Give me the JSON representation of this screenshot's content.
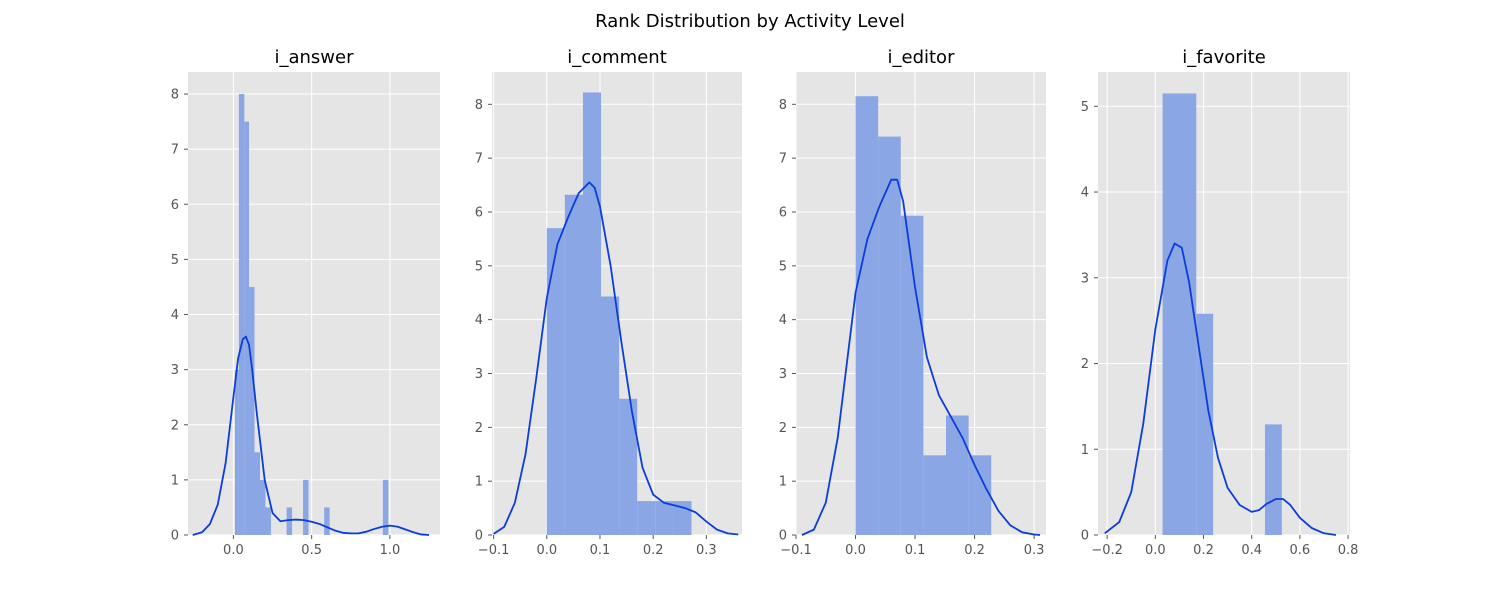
{
  "figure": {
    "title": "Rank Distribution by Activity Level"
  },
  "colors": {
    "panel_bg": "#e5e5e5",
    "grid": "#ffffff",
    "bar": "#8aa6e5",
    "kde": "#0b3ddc",
    "tick_text": "#555555"
  },
  "chart_data": [
    {
      "type": "histogram",
      "title": "i_answer",
      "xlabel": "",
      "ylabel": "",
      "xlim": [
        -0.29,
        1.32
      ],
      "ylim": [
        0,
        8.4
      ],
      "xticks": [
        0.0,
        0.5,
        1.0
      ],
      "xtick_labels": [
        "0.0",
        "0.5",
        "1.0"
      ],
      "yticks": [
        0,
        1,
        2,
        3,
        4,
        5,
        6,
        7,
        8
      ],
      "ytick_labels": [
        "0",
        "1",
        "2",
        "3",
        "4",
        "5",
        "6",
        "7",
        "8"
      ],
      "bins": [
        {
          "x0": 0.01,
          "x1": 0.035,
          "height": 3.0
        },
        {
          "x0": 0.035,
          "x1": 0.07,
          "height": 8.0
        },
        {
          "x0": 0.07,
          "x1": 0.1,
          "height": 7.5
        },
        {
          "x0": 0.1,
          "x1": 0.135,
          "height": 4.5
        },
        {
          "x0": 0.135,
          "x1": 0.17,
          "height": 1.5
        },
        {
          "x0": 0.17,
          "x1": 0.205,
          "height": 1.0
        },
        {
          "x0": 0.205,
          "x1": 0.24,
          "height": 0.5
        },
        {
          "x0": 0.34,
          "x1": 0.375,
          "height": 0.5
        },
        {
          "x0": 0.445,
          "x1": 0.48,
          "height": 1.0
        },
        {
          "x0": 0.58,
          "x1": 0.615,
          "height": 0.5
        },
        {
          "x0": 0.955,
          "x1": 0.99,
          "height": 1.0
        }
      ],
      "kde": {
        "x": [
          -0.26,
          -0.2,
          -0.15,
          -0.1,
          -0.05,
          0.0,
          0.03,
          0.06,
          0.08,
          0.1,
          0.12,
          0.15,
          0.2,
          0.25,
          0.3,
          0.35,
          0.4,
          0.45,
          0.5,
          0.55,
          0.6,
          0.65,
          0.7,
          0.75,
          0.8,
          0.85,
          0.9,
          0.95,
          1.0,
          1.05,
          1.1,
          1.15,
          1.2,
          1.25
        ],
        "y": [
          0.0,
          0.05,
          0.2,
          0.55,
          1.3,
          2.5,
          3.2,
          3.55,
          3.6,
          3.45,
          3.0,
          2.2,
          1.0,
          0.4,
          0.25,
          0.27,
          0.28,
          0.27,
          0.24,
          0.2,
          0.14,
          0.08,
          0.04,
          0.03,
          0.03,
          0.06,
          0.11,
          0.15,
          0.17,
          0.15,
          0.1,
          0.05,
          0.01,
          0.0
        ]
      }
    },
    {
      "type": "histogram",
      "title": "i_comment",
      "xlabel": "",
      "ylabel": "",
      "xlim": [
        -0.103,
        0.367
      ],
      "ylim": [
        0,
        8.6
      ],
      "xticks": [
        -0.1,
        0.0,
        0.1,
        0.2,
        0.3
      ],
      "xtick_labels": [
        "−0.1",
        "0.0",
        "0.1",
        "0.2",
        "0.3"
      ],
      "yticks": [
        0,
        1,
        2,
        3,
        4,
        5,
        6,
        7,
        8
      ],
      "ytick_labels": [
        "0",
        "1",
        "2",
        "3",
        "4",
        "5",
        "6",
        "7",
        "8"
      ],
      "bins": [
        {
          "x0": 0.0,
          "x1": 0.034,
          "height": 5.7
        },
        {
          "x0": 0.034,
          "x1": 0.068,
          "height": 6.32
        },
        {
          "x0": 0.068,
          "x1": 0.102,
          "height": 8.22
        },
        {
          "x0": 0.102,
          "x1": 0.136,
          "height": 4.43
        },
        {
          "x0": 0.136,
          "x1": 0.17,
          "height": 2.53
        },
        {
          "x0": 0.17,
          "x1": 0.204,
          "height": 0.63
        },
        {
          "x0": 0.204,
          "x1": 0.238,
          "height": 0.63
        },
        {
          "x0": 0.238,
          "x1": 0.272,
          "height": 0.63
        }
      ],
      "kde": {
        "x": [
          -0.1,
          -0.08,
          -0.06,
          -0.04,
          -0.02,
          0.0,
          0.02,
          0.04,
          0.06,
          0.08,
          0.09,
          0.1,
          0.12,
          0.14,
          0.16,
          0.18,
          0.2,
          0.22,
          0.24,
          0.26,
          0.28,
          0.3,
          0.32,
          0.34,
          0.36
        ],
        "y": [
          0.02,
          0.15,
          0.6,
          1.5,
          2.9,
          4.4,
          5.4,
          5.9,
          6.35,
          6.55,
          6.45,
          6.1,
          5.0,
          3.6,
          2.3,
          1.25,
          0.75,
          0.6,
          0.55,
          0.5,
          0.42,
          0.25,
          0.1,
          0.03,
          0.01
        ]
      }
    },
    {
      "type": "histogram",
      "title": "i_editor",
      "xlabel": "",
      "ylabel": "",
      "xlim": [
        -0.1,
        0.32
      ],
      "ylim": [
        0,
        8.6
      ],
      "xticks": [
        -0.1,
        0.0,
        0.1,
        0.2,
        0.3
      ],
      "xtick_labels": [
        "−0.1",
        "0.0",
        "0.1",
        "0.2",
        "0.3"
      ],
      "yticks": [
        0,
        1,
        2,
        3,
        4,
        5,
        6,
        7,
        8
      ],
      "ytick_labels": [
        "0",
        "1",
        "2",
        "3",
        "4",
        "5",
        "6",
        "7",
        "8"
      ],
      "bins": [
        {
          "x0": 0.0,
          "x1": 0.038,
          "height": 8.15
        },
        {
          "x0": 0.038,
          "x1": 0.076,
          "height": 7.4
        },
        {
          "x0": 0.076,
          "x1": 0.114,
          "height": 5.93
        },
        {
          "x0": 0.114,
          "x1": 0.152,
          "height": 1.48
        },
        {
          "x0": 0.152,
          "x1": 0.19,
          "height": 2.22
        },
        {
          "x0": 0.19,
          "x1": 0.228,
          "height": 1.48
        }
      ],
      "kde": {
        "x": [
          -0.09,
          -0.07,
          -0.05,
          -0.03,
          -0.01,
          0.0,
          0.02,
          0.04,
          0.06,
          0.07,
          0.08,
          0.1,
          0.12,
          0.14,
          0.16,
          0.18,
          0.2,
          0.22,
          0.24,
          0.26,
          0.28,
          0.3,
          0.31
        ],
        "y": [
          0.0,
          0.1,
          0.6,
          1.8,
          3.6,
          4.5,
          5.5,
          6.1,
          6.6,
          6.6,
          6.2,
          4.6,
          3.3,
          2.6,
          2.2,
          1.8,
          1.3,
          0.85,
          0.45,
          0.18,
          0.05,
          0.01,
          0.0
        ]
      }
    },
    {
      "type": "histogram",
      "title": "i_favorite",
      "xlabel": "",
      "ylabel": "",
      "xlim": [
        -0.238,
        0.808
      ],
      "ylim": [
        0,
        5.4
      ],
      "xticks": [
        -0.2,
        0.0,
        0.2,
        0.4,
        0.6,
        0.8
      ],
      "xtick_labels": [
        "−0.2",
        "0.0",
        "0.2",
        "0.4",
        "0.6",
        "0.8"
      ],
      "yticks": [
        0,
        1,
        2,
        3,
        4,
        5
      ],
      "ytick_labels": [
        "0",
        "1",
        "2",
        "3",
        "4",
        "5"
      ],
      "bins": [
        {
          "x0": 0.03,
          "x1": 0.17,
          "height": 5.15
        },
        {
          "x0": 0.17,
          "x1": 0.24,
          "height": 2.58
        },
        {
          "x0": 0.455,
          "x1": 0.525,
          "height": 1.29
        }
      ],
      "kde": {
        "x": [
          -0.21,
          -0.15,
          -0.1,
          -0.05,
          0.0,
          0.05,
          0.08,
          0.11,
          0.14,
          0.18,
          0.22,
          0.26,
          0.3,
          0.35,
          0.4,
          0.43,
          0.46,
          0.5,
          0.53,
          0.56,
          0.6,
          0.65,
          0.7,
          0.75
        ],
        "y": [
          0.02,
          0.15,
          0.5,
          1.3,
          2.4,
          3.2,
          3.4,
          3.35,
          2.95,
          2.2,
          1.45,
          0.9,
          0.55,
          0.35,
          0.27,
          0.29,
          0.36,
          0.42,
          0.42,
          0.35,
          0.2,
          0.08,
          0.02,
          0.0
        ]
      }
    }
  ]
}
